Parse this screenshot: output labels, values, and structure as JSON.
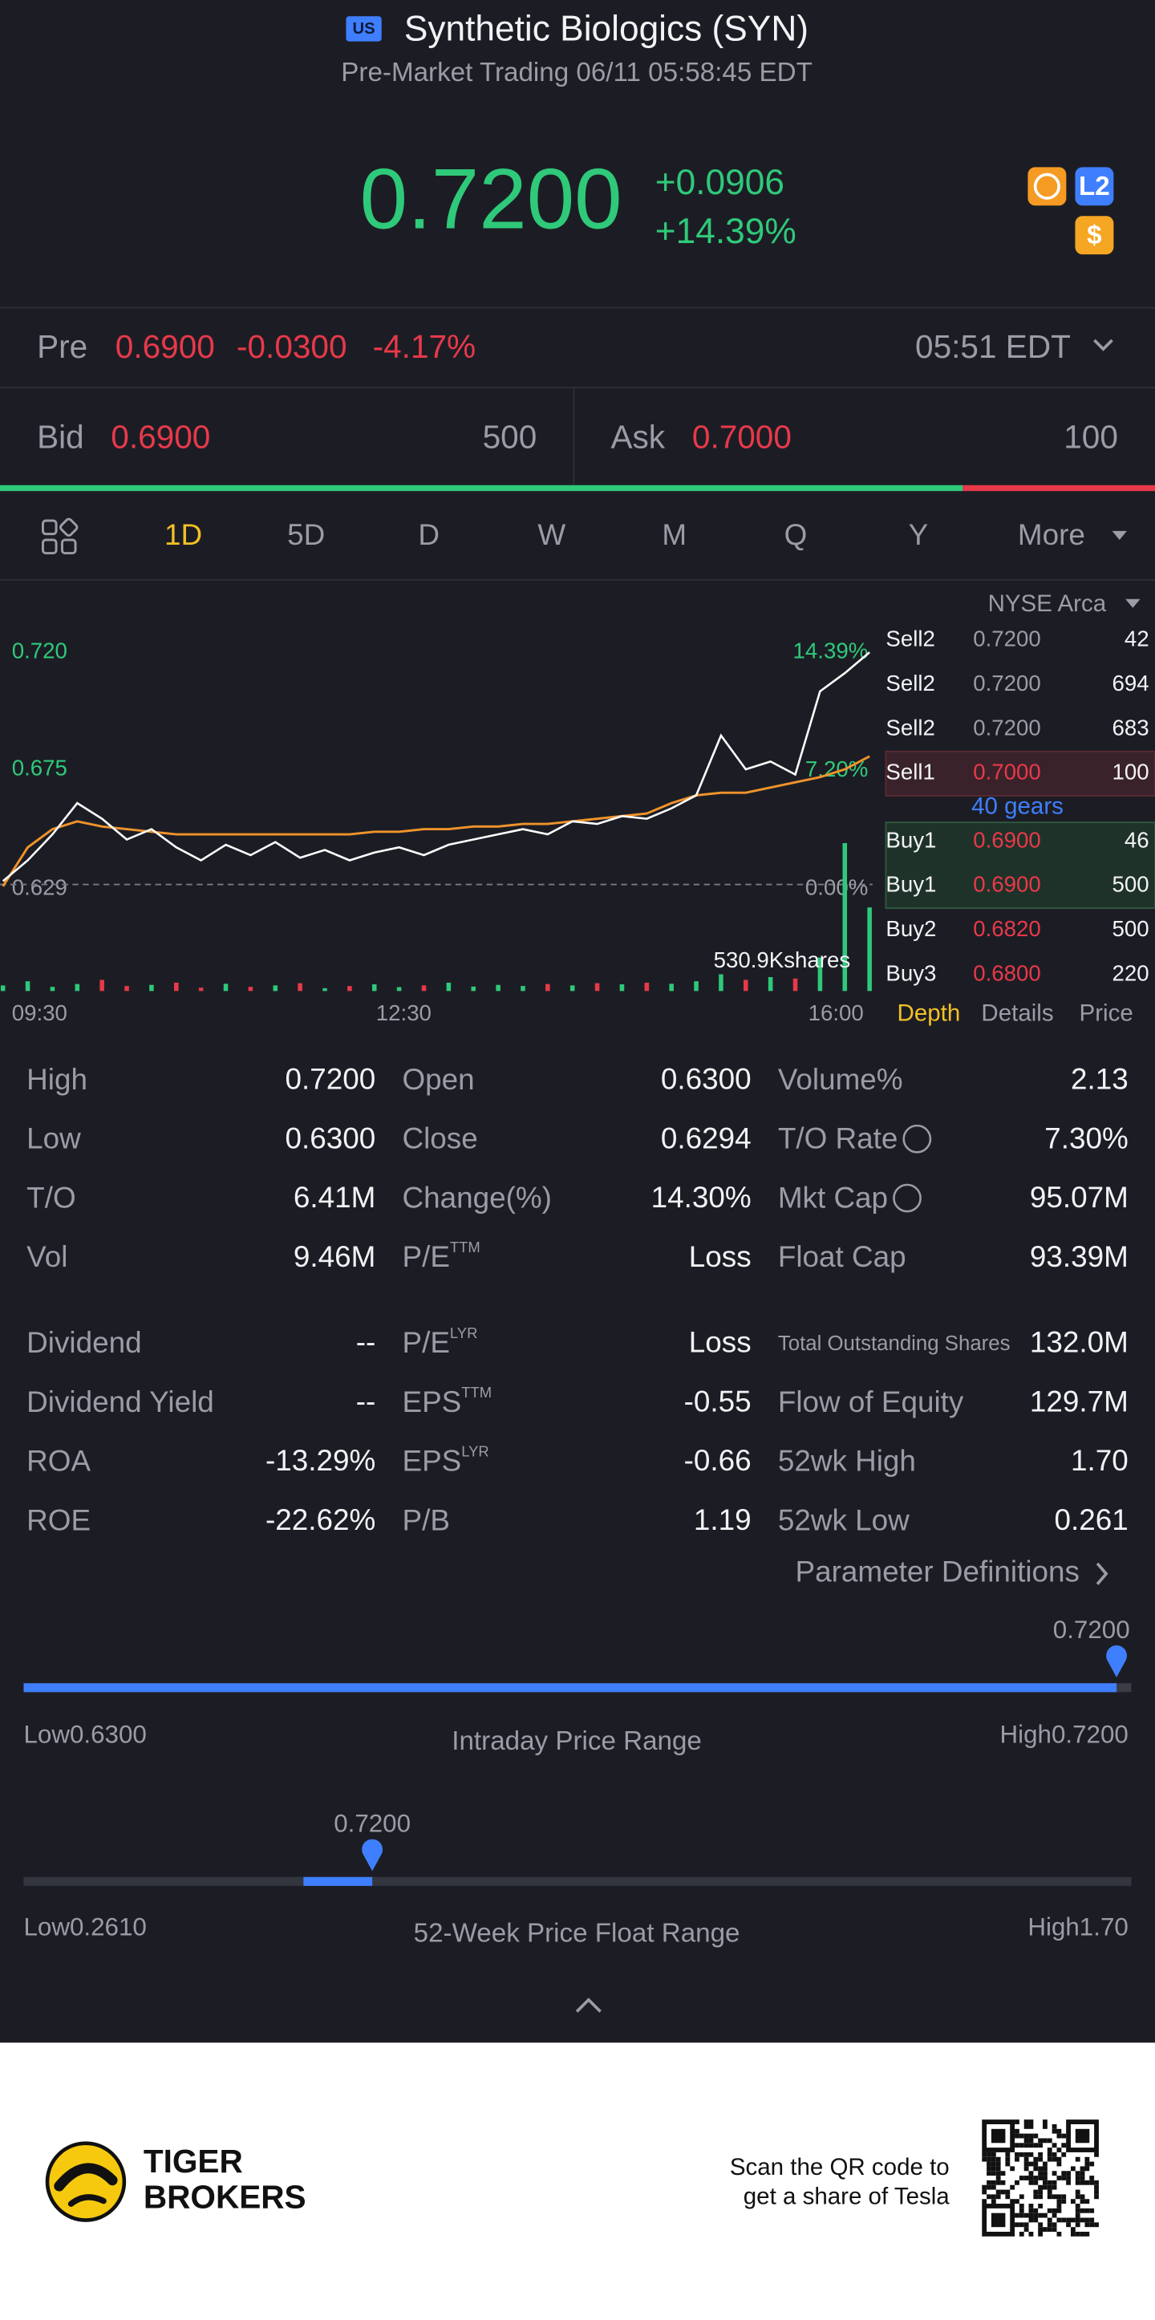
{
  "header": {
    "market_badge": "US",
    "title": "Synthetic Biologics (SYN)",
    "status": "Pre-Market Trading 06/11 05:58:45 EDT"
  },
  "quote": {
    "price": "0.7200",
    "change": "+0.0906",
    "change_percent": "+14.39%",
    "badges": [
      "L2",
      "$"
    ]
  },
  "pre_market": {
    "label": "Pre",
    "price": "0.6900",
    "change": "-0.0300",
    "change_percent": "-4.17%",
    "time": "05:51 EDT"
  },
  "bid": {
    "label": "Bid",
    "price": "0.6900",
    "size": "500"
  },
  "ask": {
    "label": "Ask",
    "price": "0.7000",
    "size": "100"
  },
  "tabs": {
    "items": [
      "1D",
      "5D",
      "D",
      "W",
      "M",
      "Q",
      "Y",
      "More"
    ],
    "active": 0
  },
  "intraday_chart": {
    "price_ticks": [
      {
        "value": 0.72,
        "label": "0.720"
      },
      {
        "value": 0.675,
        "label": "0.675"
      },
      {
        "value": 0.629,
        "label": "0.629"
      }
    ],
    "percent_ticks": [
      {
        "value": 14.39,
        "label": "14.39%"
      },
      {
        "value": 7.2,
        "label": "7.20%"
      },
      {
        "value": 0,
        "label": "0.00%"
      }
    ],
    "time_labels": [
      "09:30",
      "12:30",
      "16:00"
    ],
    "volume_label": "530.9Kshares",
    "price": [
      0.632,
      0.64,
      0.65,
      0.662,
      0.656,
      0.648,
      0.652,
      0.645,
      0.64,
      0.646,
      0.642,
      0.647,
      0.641,
      0.644,
      0.64,
      0.643,
      0.645,
      0.642,
      0.646,
      0.648,
      0.65,
      0.652,
      0.65,
      0.655,
      0.654,
      0.657,
      0.656,
      0.66,
      0.665,
      0.688,
      0.675,
      0.678,
      0.673,
      0.705,
      0.712,
      0.72
    ],
    "average": [
      0.63,
      0.645,
      0.652,
      0.655,
      0.653,
      0.652,
      0.651,
      0.65,
      0.65,
      0.65,
      0.65,
      0.65,
      0.65,
      0.65,
      0.65,
      0.651,
      0.651,
      0.652,
      0.652,
      0.653,
      0.653,
      0.654,
      0.654,
      0.655,
      0.656,
      0.657,
      0.658,
      0.662,
      0.665,
      0.666,
      0.666,
      0.668,
      0.67,
      0.672,
      0.675,
      0.68
    ],
    "volume": [
      20,
      35,
      15,
      25,
      40,
      18,
      22,
      30,
      12,
      26,
      15,
      20,
      28,
      10,
      18,
      24,
      14,
      20,
      30,
      16,
      22,
      18,
      25,
      20,
      28,
      24,
      30,
      26,
      35,
      60,
      40,
      50,
      45,
      120,
      530.9,
      300
    ]
  },
  "order_book": {
    "exchange": "NYSE Arca",
    "asks": [
      {
        "level": "Sell2",
        "price": "0.7200",
        "size": "42",
        "color": "#9a9ca6"
      },
      {
        "level": "Sell2",
        "price": "0.7200",
        "size": "694",
        "color": "#9a9ca6"
      },
      {
        "level": "Sell2",
        "price": "0.7200",
        "size": "683",
        "color": "#9a9ca6"
      },
      {
        "level": "Sell1",
        "price": "0.7000",
        "size": "100",
        "color": "#e8394a"
      }
    ],
    "gears": "40 gears",
    "bids": [
      {
        "level": "Buy1",
        "price": "0.6900",
        "size": "46",
        "color": "#e8394a"
      },
      {
        "level": "Buy1",
        "price": "0.6900",
        "size": "500",
        "color": "#e8394a"
      },
      {
        "level": "Buy2",
        "price": "0.6820",
        "size": "500",
        "color": "#e8394a"
      },
      {
        "level": "Buy3",
        "price": "0.6800",
        "size": "220",
        "color": "#e8394a"
      }
    ],
    "tabs": [
      "Depth",
      "Details",
      "Price"
    ],
    "active_tab": 0
  },
  "stats": {
    "rows": [
      [
        {
          "label": "High",
          "value": "0.7200"
        },
        {
          "label": "Open",
          "value": "0.6300"
        },
        {
          "label": "Volume%",
          "value": "2.13"
        }
      ],
      [
        {
          "label": "Low",
          "value": "0.6300"
        },
        {
          "label": "Close",
          "value": "0.6294"
        },
        {
          "label": "T/O Rate",
          "value": "7.30%",
          "info": true
        }
      ],
      [
        {
          "label": "T/O",
          "value": "6.41M"
        },
        {
          "label": "Change(%)",
          "value": "14.30%"
        },
        {
          "label": "Mkt Cap",
          "value": "95.07M",
          "info": true
        }
      ],
      [
        {
          "label": "Vol",
          "value": "9.46M"
        },
        {
          "label": "P/E",
          "sup": "TTM",
          "value": "Loss"
        },
        {
          "label": "Float Cap",
          "value": "93.39M"
        }
      ],
      [
        {
          "label": "Dividend",
          "value": "--"
        },
        {
          "label": "P/E",
          "sup": "LYR",
          "value": "Loss"
        },
        {
          "label": "Total Outstanding Shares",
          "value": "132.0M",
          "small": true
        }
      ],
      [
        {
          "label": "Dividend Yield",
          "value": "--"
        },
        {
          "label": "EPS",
          "sup": "TTM",
          "value": "-0.55"
        },
        {
          "label": "Flow of Equity",
          "value": "129.7M"
        }
      ],
      [
        {
          "label": "ROA",
          "value": "-13.29%"
        },
        {
          "label": "EPS",
          "sup": "LYR",
          "value": "-0.66"
        },
        {
          "label": "52wk High",
          "value": "1.70"
        }
      ],
      [
        {
          "label": "ROE",
          "value": "-22.62%"
        },
        {
          "label": "P/B",
          "value": "1.19"
        },
        {
          "label": "52wk Low",
          "value": "0.261"
        }
      ]
    ]
  },
  "parameter_link": "Parameter Definitions",
  "intraday_range": {
    "title": "Intraday Price Range",
    "low_label": "Low",
    "low": {
      "value": 0.63,
      "label": "0.6300"
    },
    "high_label": "High",
    "high": {
      "value": 0.72,
      "label": "0.7200"
    },
    "current": {
      "value": 0.72,
      "label": "0.7200"
    },
    "segment_start": 0.63
  },
  "week52_range": {
    "title": "52-Week Price Float Range",
    "low_label": "Low",
    "low": {
      "value": 0.261,
      "label": "0.2610"
    },
    "high_label": "High",
    "high": {
      "value": 1.7,
      "label": "1.70"
    },
    "current": {
      "value": 0.72,
      "label": "0.7200"
    },
    "segment_start": 0.6294
  },
  "footer": {
    "brand": [
      "TIGER",
      "BROKERS"
    ],
    "promo": [
      "Scan the QR code to",
      "get a share of Tesla"
    ]
  }
}
